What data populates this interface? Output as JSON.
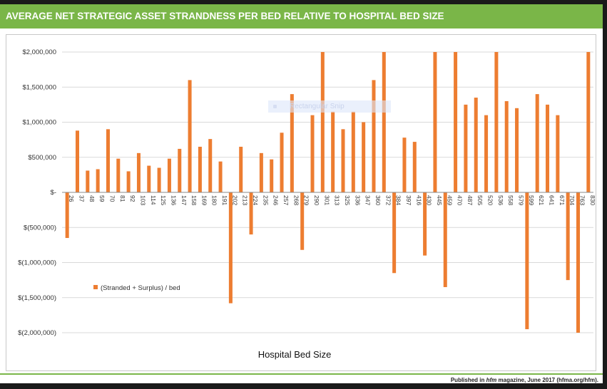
{
  "header": {
    "title": "AVERAGE NET STRATEGIC ASSET STRANDNESS PER BED RELATIVE TO HOSPITAL BED SIZE"
  },
  "overlay": {
    "snip_label": "Rectangular Snip"
  },
  "footer": {
    "credit_prefix": "Published in ",
    "credit_magazine": "hfm",
    "credit_suffix": " magazine, June 2017 (hfma.org/hfm)."
  },
  "colors": {
    "accent": "#7ab648",
    "bar": "#ed7d31",
    "grid": "#d9d9d9"
  },
  "chart_data": {
    "type": "bar",
    "title": "",
    "xlabel": "Hospital Bed Size",
    "ylabel": "",
    "ylim": [
      -2000000,
      2000000
    ],
    "yticks": [
      {
        "value": 2000000,
        "label": "$2,000,000"
      },
      {
        "value": 1500000,
        "label": "$1,500,000"
      },
      {
        "value": 1000000,
        "label": "$1,000,000"
      },
      {
        "value": 500000,
        "label": "$500,000"
      },
      {
        "value": 0,
        "label": "$-"
      },
      {
        "value": -500000,
        "label": "$(500,000)"
      },
      {
        "value": -1000000,
        "label": "$(1,000,000)"
      },
      {
        "value": -1500000,
        "label": "$(1,500,000)"
      },
      {
        "value": -2000000,
        "label": "$(2,000,000)"
      }
    ],
    "grid": true,
    "legend": {
      "position": "left-middle",
      "entries": [
        "(Stranded + Surplus) / bed"
      ]
    },
    "series": [
      {
        "name": "(Stranded + Surplus) / bed",
        "color": "#ed7d31"
      }
    ],
    "categories": [
      "26",
      "37",
      "48",
      "59",
      "70",
      "81",
      "92",
      "103",
      "114",
      "125",
      "136",
      "147",
      "158",
      "169",
      "180",
      "191",
      "202",
      "213",
      "224",
      "235",
      "246",
      "257",
      "268",
      "279",
      "290",
      "301",
      "313",
      "325",
      "336",
      "347",
      "360",
      "372",
      "384",
      "397",
      "416",
      "430",
      "445",
      "459",
      "470",
      "487",
      "505",
      "520",
      "536",
      "558",
      "579",
      "599",
      "621",
      "641",
      "671",
      "704",
      "763",
      "830"
    ],
    "values": [
      -650000,
      880000,
      310000,
      330000,
      900000,
      480000,
      300000,
      560000,
      380000,
      350000,
      480000,
      620000,
      1600000,
      650000,
      760000,
      440000,
      -1580000,
      650000,
      -600000,
      560000,
      470000,
      850000,
      1400000,
      -820000,
      1100000,
      2000000,
      1150000,
      900000,
      1150000,
      1000000,
      1600000,
      2000000,
      -1150000,
      780000,
      720000,
      -900000,
      2000000,
      -1350000,
      2000000,
      1250000,
      1350000,
      1100000,
      2000000,
      1300000,
      1200000,
      -1950000,
      1400000,
      1250000,
      1100000,
      -1250000,
      -2000000,
      2000000
    ]
  }
}
